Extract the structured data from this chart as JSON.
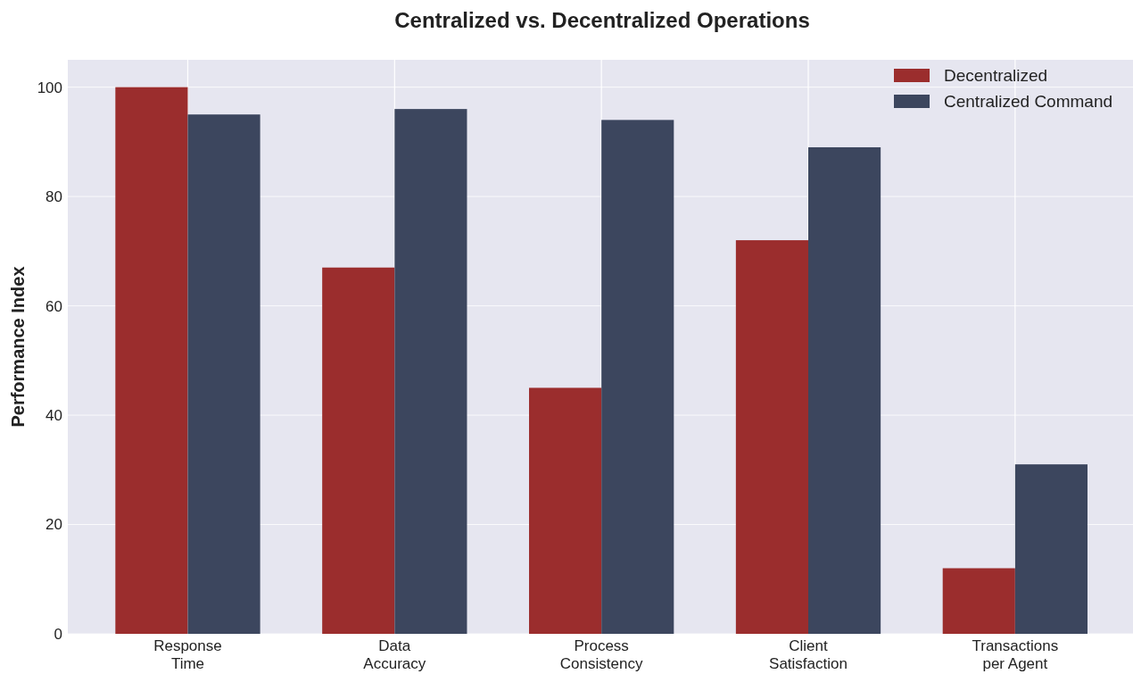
{
  "chart_data": {
    "type": "bar",
    "title": "Centralized vs. Decentralized Operations",
    "ylabel": "Performance Index",
    "categories": [
      "Response\nTime",
      "Data\nAccuracy",
      "Process\nConsistency",
      "Client\nSatisfaction",
      "Transactions\nper Agent"
    ],
    "series": [
      {
        "name": "Decentralized",
        "color": "#9b2d2d",
        "values": [
          100,
          67,
          45,
          72,
          12
        ]
      },
      {
        "name": "Centralized Command",
        "color": "#3c465e",
        "values": [
          95,
          96,
          94,
          89,
          31
        ]
      }
    ],
    "ylim": [
      0,
      105
    ],
    "yticks": [
      0,
      20,
      40,
      60,
      80,
      100
    ],
    "grid": true,
    "legend": "top right"
  }
}
